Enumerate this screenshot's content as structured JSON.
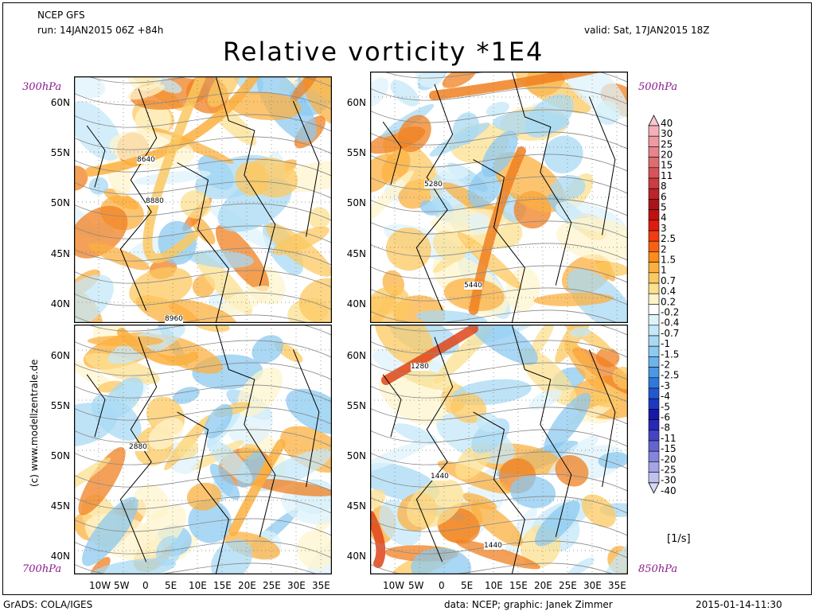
{
  "header": {
    "model": "NCEP GFS",
    "run": "run: 14JAN2015 06Z +84h",
    "valid": "valid: Sat, 17JAN2015 18Z",
    "title": "Relative vorticity *1E4"
  },
  "panels": [
    {
      "level": "300hPa",
      "contour_label": "8640",
      "contour_label2": "8880",
      "contour_label3": "8960"
    },
    {
      "level": "500hPa",
      "contour_label": "5280",
      "contour_label2": "5440",
      "contour_label3": ""
    },
    {
      "level": "700hPa",
      "contour_label": "2880",
      "contour_label2": "",
      "contour_label3": ""
    },
    {
      "level": "850hPa",
      "contour_label": "1280",
      "contour_label2": "1440",
      "contour_label3": "1440"
    }
  ],
  "lat_labels": [
    "60N",
    "55N",
    "50N",
    "45N",
    "40N"
  ],
  "lon_labels": [
    "10W",
    "5W",
    "0",
    "5E",
    "10E",
    "15E",
    "20E",
    "25E",
    "30E",
    "35E"
  ],
  "legend": {
    "levels": [
      "40",
      "30",
      "25",
      "20",
      "15",
      "11",
      "8",
      "6",
      "5",
      "4",
      "3",
      "2.5",
      "2",
      "1.5",
      "1",
      "0.7",
      "0.4",
      "0.2",
      "-0.2",
      "-0.4",
      "-0.7",
      "-1",
      "-1.5",
      "-2",
      "-2.5",
      "-3",
      "-4",
      "-5",
      "-6",
      "-8",
      "-11",
      "-15",
      "-20",
      "-25",
      "-30",
      "-40"
    ],
    "colors": [
      "#f8c8d0",
      "#f4b0b8",
      "#ee9aa2",
      "#e8848c",
      "#e06c72",
      "#d8545a",
      "#cc3c40",
      "#bc2428",
      "#a81418",
      "#c01010",
      "#e01c10",
      "#f03c10",
      "#f86010",
      "#fc8c1c",
      "#fcb040",
      "#fcc860",
      "#fce090",
      "#fdf4cc",
      "#ffffff",
      "#dff3fb",
      "#c4e8f8",
      "#a8daf4",
      "#8ccaf0",
      "#6cb4ec",
      "#4c98e4",
      "#3278dc",
      "#2258d0",
      "#1c38c0",
      "#1818a8",
      "#2828b8",
      "#4444c4",
      "#6464d0",
      "#8484dc",
      "#a4a4e8",
      "#c0c0f0",
      "#d8d8f8"
    ],
    "units": "[1/s]"
  },
  "footer": {
    "left": "GrADS: COLA/IGES",
    "center": "data: NCEP; graphic: Janek Zimmer",
    "right": "2015-01-14-11:30"
  },
  "side_text": "(c)  www.modellzentrale.de"
}
